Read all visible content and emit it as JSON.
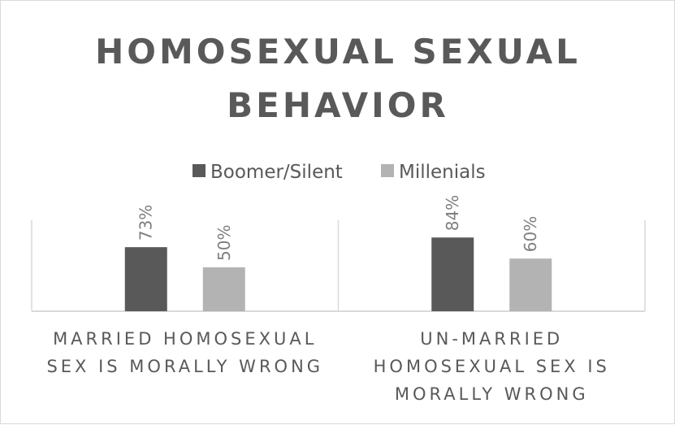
{
  "chart_data": {
    "type": "bar",
    "title": "HOMOSEXUAL SEXUAL BEHAVIOR",
    "title_lines": [
      "HOMOSEXUAL SEXUAL",
      "BEHAVIOR"
    ],
    "categories": [
      "MARRIED HOMOSEXUAL SEX IS MORALLY WRONG",
      "UN-MARRIED HOMOSEXUAL SEX IS MORALLY WRONG"
    ],
    "category_lines": [
      [
        "MARRIED HOMOSEXUAL",
        "SEX IS MORALLY WRONG"
      ],
      [
        "UN-MARRIED",
        "HOMOSEXUAL SEX IS",
        "MORALLY WRONG"
      ]
    ],
    "series": [
      {
        "name": "Boomer/Silent",
        "values": [
          73,
          84
        ],
        "labels": [
          "73%",
          "84%"
        ],
        "color": "#595959"
      },
      {
        "name": "Millenials",
        "values": [
          50,
          60
        ],
        "labels": [
          "50%",
          "60%"
        ],
        "color": "#b3b3b3"
      }
    ],
    "unit": "%",
    "ylim": [
      0,
      100
    ],
    "grid": false,
    "legend_position": "top",
    "axis_color": "#d9d9d9"
  }
}
